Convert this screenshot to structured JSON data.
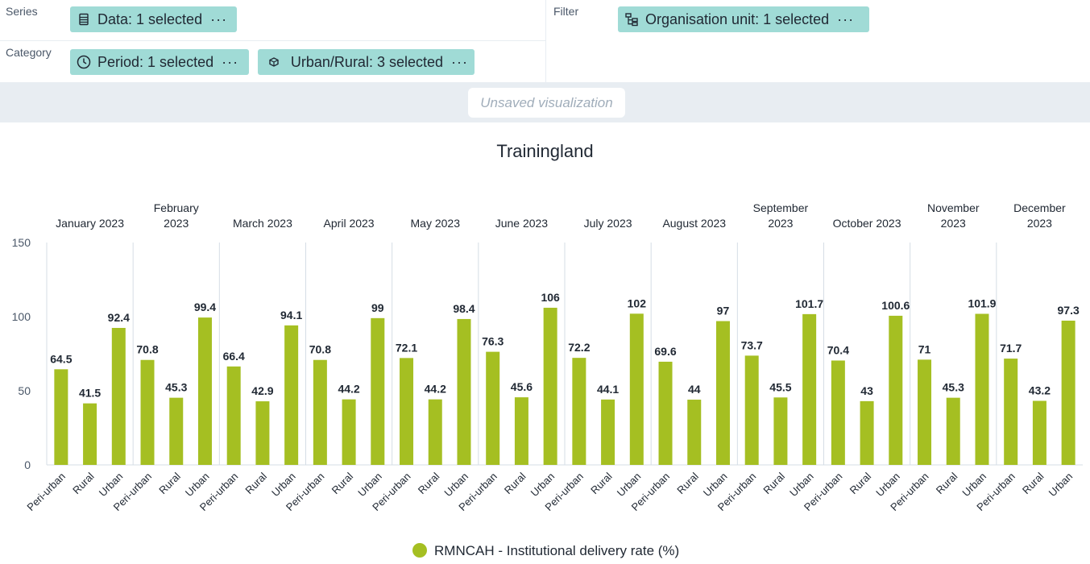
{
  "layout": {
    "series": {
      "label": "Series",
      "chips": [
        {
          "icon": "data-icon",
          "text": "Data: 1 selected",
          "more": "···"
        }
      ]
    },
    "category": {
      "label": "Category",
      "chips": [
        {
          "icon": "clock-icon",
          "text": "Period: 1 selected",
          "more": "···"
        },
        {
          "icon": "dimension-icon",
          "text": "Urban/Rural: 3 selected",
          "more": "···"
        }
      ]
    },
    "filter": {
      "label": "Filter",
      "chips": [
        {
          "icon": "org-unit-icon",
          "text": "Organisation unit: 1 selected",
          "more": "···"
        }
      ]
    }
  },
  "visualization_title": "Unsaved visualization",
  "colors": {
    "bar": "#a5bf22",
    "chip": "#a0dbd6",
    "titlebar_bg": "#e8edf2"
  },
  "chart_data": {
    "type": "bar",
    "title": "Trainingland",
    "ylim": [
      0,
      150
    ],
    "yticks": [
      0,
      50,
      100,
      150
    ],
    "grid": false,
    "legend_position": "bottom",
    "groups": [
      {
        "label": [
          "January 2023"
        ],
        "categories": [
          "Peri-urban",
          "Rural",
          "Urban"
        ],
        "values": [
          64.5,
          41.5,
          92.4
        ]
      },
      {
        "label": [
          "February",
          "2023"
        ],
        "categories": [
          "Peri-urban",
          "Rural",
          "Urban"
        ],
        "values": [
          70.8,
          45.3,
          99.4
        ]
      },
      {
        "label": [
          "March 2023"
        ],
        "categories": [
          "Peri-urban",
          "Rural",
          "Urban"
        ],
        "values": [
          66.4,
          42.9,
          94.1
        ]
      },
      {
        "label": [
          "April 2023"
        ],
        "categories": [
          "Peri-urban",
          "Rural",
          "Urban"
        ],
        "values": [
          70.8,
          44.2,
          99
        ]
      },
      {
        "label": [
          "May 2023"
        ],
        "categories": [
          "Peri-urban",
          "Rural",
          "Urban"
        ],
        "values": [
          72.1,
          44.2,
          98.4
        ]
      },
      {
        "label": [
          "June 2023"
        ],
        "categories": [
          "Peri-urban",
          "Rural",
          "Urban"
        ],
        "values": [
          76.3,
          45.6,
          106
        ]
      },
      {
        "label": [
          "July 2023"
        ],
        "categories": [
          "Peri-urban",
          "Rural",
          "Urban"
        ],
        "values": [
          72.2,
          44.1,
          102
        ]
      },
      {
        "label": [
          "August 2023"
        ],
        "categories": [
          "Peri-urban",
          "Rural",
          "Urban"
        ],
        "values": [
          69.6,
          44,
          97
        ]
      },
      {
        "label": [
          "September",
          "2023"
        ],
        "categories": [
          "Peri-urban",
          "Rural",
          "Urban"
        ],
        "values": [
          73.7,
          45.5,
          101.7
        ]
      },
      {
        "label": [
          "October 2023"
        ],
        "categories": [
          "Peri-urban",
          "Rural",
          "Urban"
        ],
        "values": [
          70.4,
          43,
          100.6
        ]
      },
      {
        "label": [
          "November",
          "2023"
        ],
        "categories": [
          "Peri-urban",
          "Rural",
          "Urban"
        ],
        "values": [
          71,
          45.3,
          101.9
        ]
      },
      {
        "label": [
          "December",
          "2023"
        ],
        "categories": [
          "Peri-urban",
          "Rural",
          "Urban"
        ],
        "values": [
          71.7,
          43.2,
          97.3
        ]
      }
    ],
    "series": [
      {
        "name": "RMNCAH - Institutional delivery rate (%)",
        "color": "#a5bf22"
      }
    ]
  }
}
